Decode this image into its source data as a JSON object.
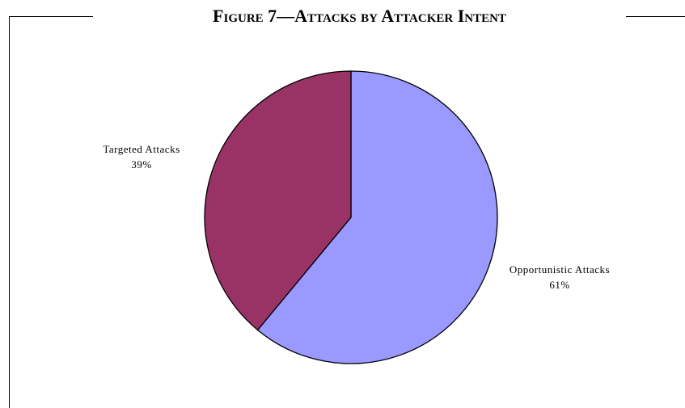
{
  "chart_data": {
    "type": "pie",
    "title": "Figure 7—Attacks by Attacker Intent",
    "slices": [
      {
        "label": "Opportunistic Attacks",
        "value": 61,
        "display": "61%",
        "color": "#9999ff"
      },
      {
        "label": "Targeted Attacks",
        "value": 39,
        "display": "39%",
        "color": "#993366"
      }
    ],
    "legend": "none",
    "slice_labels": "outside, label with percentage"
  }
}
